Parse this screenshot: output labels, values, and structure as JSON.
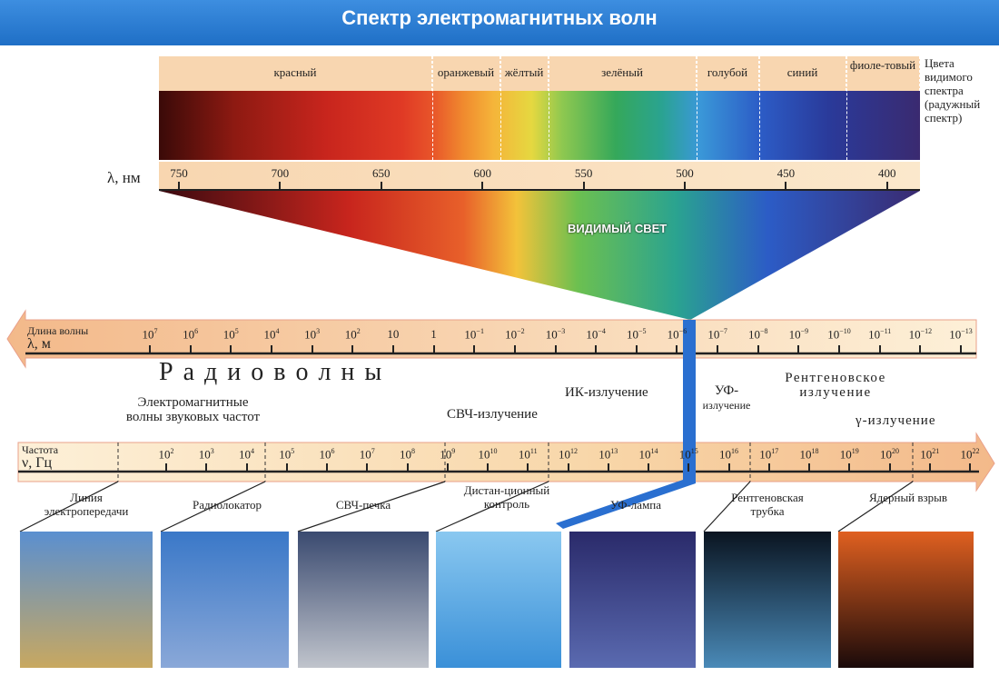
{
  "title": "Спектр электромагнитных волн",
  "visible": {
    "colors": [
      "красный",
      "оранжевый",
      "жёлтый",
      "зелёный",
      "голубой",
      "синий",
      "фиоле-товый"
    ],
    "side_label": "Цвета видимого спектра (радужный спектр)",
    "nm_label": "λ, нм",
    "nm_ticks": [
      "750",
      "700",
      "650",
      "600",
      "550",
      "500",
      "450",
      "400"
    ],
    "center_label": "ВИДИМЫЙ СВЕТ"
  },
  "wavelength": {
    "label1": "Длина волны",
    "label2": "λ, м",
    "ticks": [
      {
        "b": "10",
        "e": "7"
      },
      {
        "b": "10",
        "e": "6"
      },
      {
        "b": "10",
        "e": "5"
      },
      {
        "b": "10",
        "e": "4"
      },
      {
        "b": "10",
        "e": "3"
      },
      {
        "b": "10",
        "e": "2"
      },
      {
        "b": "10",
        "e": ""
      },
      {
        "b": "1",
        "e": ""
      },
      {
        "b": "10",
        "e": "−1"
      },
      {
        "b": "10",
        "e": "−2"
      },
      {
        "b": "10",
        "e": "−3"
      },
      {
        "b": "10",
        "e": "−4"
      },
      {
        "b": "10",
        "e": "−5"
      },
      {
        "b": "10",
        "e": "−6"
      },
      {
        "b": "10",
        "e": "−7"
      },
      {
        "b": "10",
        "e": "−8"
      },
      {
        "b": "10",
        "e": "−9"
      },
      {
        "b": "10",
        "e": "−10"
      },
      {
        "b": "10",
        "e": "−11"
      },
      {
        "b": "10",
        "e": "−12"
      },
      {
        "b": "10",
        "e": "−13"
      }
    ]
  },
  "bands": {
    "radio": "Р а д и о в о л н ы",
    "sound": "Электромагнитные волны звуковых частот",
    "microwave": "СВЧ-излучение",
    "ir": "ИК-излучение",
    "uv1": "УФ-",
    "uv2": "излучение",
    "xray1": "Рентгеновское",
    "xray2": "излучение",
    "gamma": "γ-излучение"
  },
  "frequency": {
    "label1": "Частота",
    "label2": "ν, Гц",
    "ticks": [
      "2",
      "3",
      "4",
      "5",
      "6",
      "7",
      "8",
      "9",
      "10",
      "11",
      "12",
      "13",
      "14",
      "15",
      "16",
      "17",
      "18",
      "19",
      "20",
      "21",
      "22"
    ]
  },
  "examples": [
    "Линия электропередачи",
    "Радиолокатор",
    "СВЧ-печка",
    "Дистан-ционный контроль",
    "УФ-лампа",
    "Рентгеновская трубка",
    "Ядерный взрыв"
  ],
  "accent": "#2a6fd0"
}
